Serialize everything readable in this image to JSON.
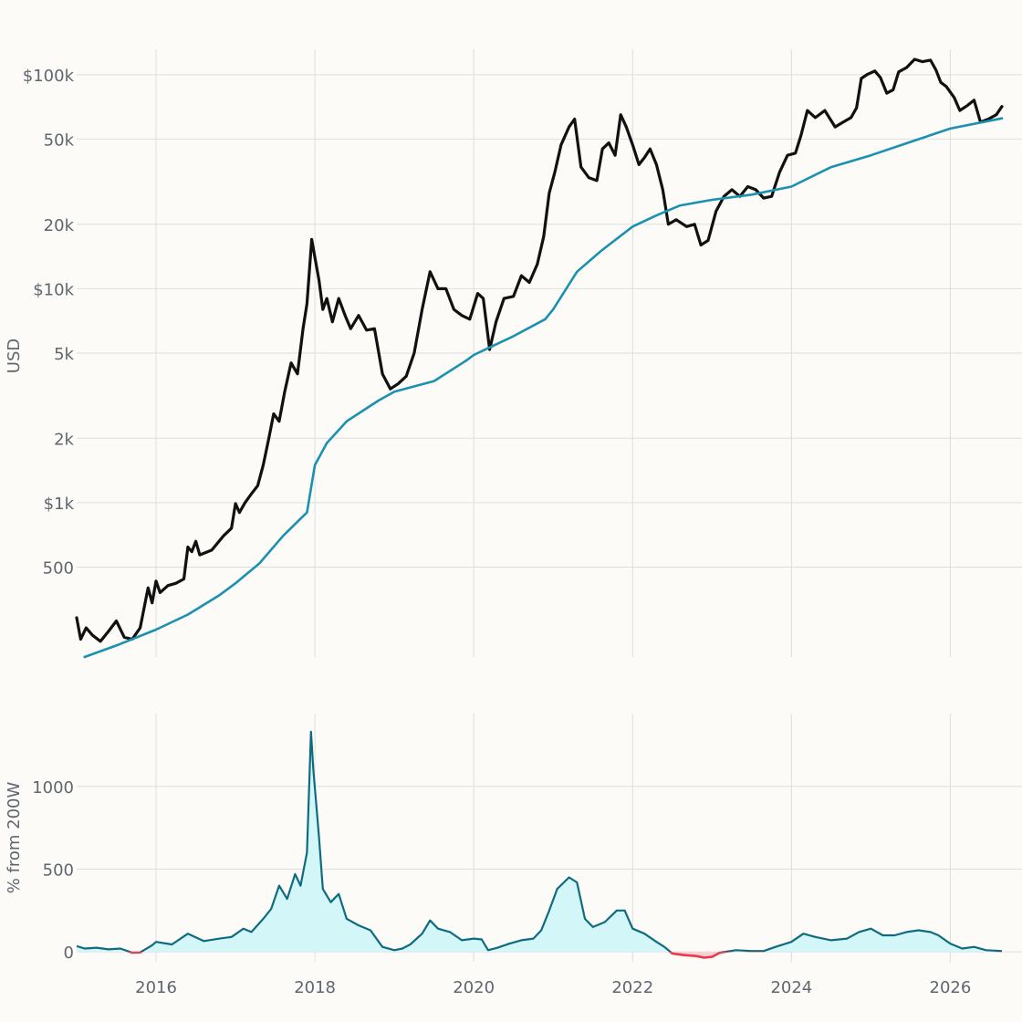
{
  "chart_data": [
    {
      "type": "line",
      "title": "",
      "xlabel": "",
      "ylabel": "USD",
      "yscale": "log",
      "xlim": [
        2015.0,
        2026.65
      ],
      "ylim": [
        190,
        145000
      ],
      "grid": true,
      "x_ticks": [
        {
          "value": 2016,
          "label": "2016"
        },
        {
          "value": 2018,
          "label": "2018"
        },
        {
          "value": 2020,
          "label": "2020"
        },
        {
          "value": 2022,
          "label": "2022"
        },
        {
          "value": 2024,
          "label": "2024"
        },
        {
          "value": 2026,
          "label": "2026"
        }
      ],
      "y_ticks": [
        {
          "value": 500,
          "label": "500"
        },
        {
          "value": 1000,
          "label": "$1k"
        },
        {
          "value": 2000,
          "label": "2k"
        },
        {
          "value": 5000,
          "label": "5k"
        },
        {
          "value": 10000,
          "label": "$10k"
        },
        {
          "value": 20000,
          "label": "20k"
        },
        {
          "value": 50000,
          "label": "50k"
        },
        {
          "value": 100000,
          "label": "$100k"
        }
      ],
      "series": [
        {
          "color": "#111111",
          "points": [
            [
              2015.0,
              290
            ],
            [
              2015.05,
              230
            ],
            [
              2015.12,
              260
            ],
            [
              2015.2,
              240
            ],
            [
              2015.3,
              225
            ],
            [
              2015.4,
              250
            ],
            [
              2015.5,
              280
            ],
            [
              2015.6,
              235
            ],
            [
              2015.7,
              230
            ],
            [
              2015.8,
              260
            ],
            [
              2015.9,
              400
            ],
            [
              2015.95,
              340
            ],
            [
              2016.0,
              430
            ],
            [
              2016.05,
              380
            ],
            [
              2016.15,
              410
            ],
            [
              2016.25,
              420
            ],
            [
              2016.35,
              440
            ],
            [
              2016.4,
              620
            ],
            [
              2016.45,
              590
            ],
            [
              2016.5,
              660
            ],
            [
              2016.55,
              570
            ],
            [
              2016.7,
              600
            ],
            [
              2016.85,
              700
            ],
            [
              2016.95,
              760
            ],
            [
              2017.0,
              990
            ],
            [
              2017.05,
              900
            ],
            [
              2017.12,
              1000
            ],
            [
              2017.2,
              1100
            ],
            [
              2017.28,
              1200
            ],
            [
              2017.35,
              1500
            ],
            [
              2017.42,
              2000
            ],
            [
              2017.48,
              2600
            ],
            [
              2017.55,
              2400
            ],
            [
              2017.62,
              3300
            ],
            [
              2017.7,
              4500
            ],
            [
              2017.78,
              4000
            ],
            [
              2017.85,
              6500
            ],
            [
              2017.9,
              8500
            ],
            [
              2017.96,
              17000
            ],
            [
              2018.0,
              14000
            ],
            [
              2018.05,
              11000
            ],
            [
              2018.1,
              8000
            ],
            [
              2018.15,
              9000
            ],
            [
              2018.22,
              7000
            ],
            [
              2018.3,
              9000
            ],
            [
              2018.38,
              7500
            ],
            [
              2018.45,
              6500
            ],
            [
              2018.55,
              7500
            ],
            [
              2018.65,
              6400
            ],
            [
              2018.75,
              6500
            ],
            [
              2018.85,
              4000
            ],
            [
              2018.95,
              3400
            ],
            [
              2019.05,
              3600
            ],
            [
              2019.15,
              3900
            ],
            [
              2019.25,
              5000
            ],
            [
              2019.35,
              8000
            ],
            [
              2019.45,
              12000
            ],
            [
              2019.55,
              10000
            ],
            [
              2019.65,
              10000
            ],
            [
              2019.75,
              8000
            ],
            [
              2019.85,
              7500
            ],
            [
              2019.95,
              7200
            ],
            [
              2020.05,
              9500
            ],
            [
              2020.12,
              9000
            ],
            [
              2020.2,
              5200
            ],
            [
              2020.28,
              7000
            ],
            [
              2020.38,
              9000
            ],
            [
              2020.5,
              9200
            ],
            [
              2020.6,
              11500
            ],
            [
              2020.7,
              10700
            ],
            [
              2020.8,
              13000
            ],
            [
              2020.88,
              17500
            ],
            [
              2020.95,
              28000
            ],
            [
              2021.02,
              35000
            ],
            [
              2021.1,
              47000
            ],
            [
              2021.2,
              57000
            ],
            [
              2021.27,
              62000
            ],
            [
              2021.35,
              37000
            ],
            [
              2021.45,
              33000
            ],
            [
              2021.55,
              32000
            ],
            [
              2021.62,
              45000
            ],
            [
              2021.7,
              48000
            ],
            [
              2021.78,
              42000
            ],
            [
              2021.85,
              65000
            ],
            [
              2021.92,
              57000
            ],
            [
              2022.0,
              47000
            ],
            [
              2022.08,
              38000
            ],
            [
              2022.15,
              41000
            ],
            [
              2022.22,
              45000
            ],
            [
              2022.3,
              38000
            ],
            [
              2022.38,
              29000
            ],
            [
              2022.45,
              20000
            ],
            [
              2022.55,
              21000
            ],
            [
              2022.68,
              19500
            ],
            [
              2022.78,
              20000
            ],
            [
              2022.86,
              16000
            ],
            [
              2022.95,
              16800
            ],
            [
              2023.05,
              23000
            ],
            [
              2023.15,
              27000
            ],
            [
              2023.25,
              29000
            ],
            [
              2023.35,
              27000
            ],
            [
              2023.45,
              30000
            ],
            [
              2023.55,
              29000
            ],
            [
              2023.65,
              26500
            ],
            [
              2023.75,
              27000
            ],
            [
              2023.85,
              35000
            ],
            [
              2023.95,
              42000
            ],
            [
              2024.05,
              43000
            ],
            [
              2024.12,
              52000
            ],
            [
              2024.2,
              68000
            ],
            [
              2024.3,
              63000
            ],
            [
              2024.42,
              68000
            ],
            [
              2024.55,
              57000
            ],
            [
              2024.65,
              60000
            ],
            [
              2024.75,
              63000
            ],
            [
              2024.82,
              70000
            ],
            [
              2024.88,
              96000
            ],
            [
              2024.95,
              100000
            ],
            [
              2025.05,
              104000
            ],
            [
              2025.12,
              97000
            ],
            [
              2025.2,
              82000
            ],
            [
              2025.28,
              85000
            ],
            [
              2025.35,
              103000
            ],
            [
              2025.45,
              108000
            ],
            [
              2025.55,
              118000
            ],
            [
              2025.65,
              115000
            ],
            [
              2025.75,
              117000
            ],
            [
              2025.82,
              105000
            ],
            [
              2025.88,
              92000
            ],
            [
              2025.95,
              88000
            ],
            [
              2026.05,
              78000
            ],
            [
              2026.12,
              68000
            ],
            [
              2026.22,
              72000
            ],
            [
              2026.3,
              76000
            ],
            [
              2026.38,
              60000
            ],
            [
              2026.48,
              62000
            ],
            [
              2026.58,
              65000
            ],
            [
              2026.65,
              71000
            ]
          ]
        },
        {
          "color": "#1b91b0",
          "points": [
            [
              2015.1,
              190
            ],
            [
              2015.5,
              215
            ],
            [
              2016.0,
              255
            ],
            [
              2016.4,
              300
            ],
            [
              2016.8,
              370
            ],
            [
              2017.0,
              420
            ],
            [
              2017.3,
              520
            ],
            [
              2017.6,
              700
            ],
            [
              2017.9,
              900
            ],
            [
              2018.0,
              1500
            ],
            [
              2018.15,
              1900
            ],
            [
              2018.4,
              2400
            ],
            [
              2018.8,
              3000
            ],
            [
              2019.0,
              3300
            ],
            [
              2019.5,
              3700
            ],
            [
              2019.9,
              4600
            ],
            [
              2020.0,
              4900
            ],
            [
              2020.5,
              6000
            ],
            [
              2020.9,
              7200
            ],
            [
              2021.0,
              8000
            ],
            [
              2021.3,
              12000
            ],
            [
              2021.6,
              15000
            ],
            [
              2022.0,
              19500
            ],
            [
              2022.3,
              22000
            ],
            [
              2022.6,
              24500
            ],
            [
              2023.0,
              26000
            ],
            [
              2023.5,
              27500
            ],
            [
              2024.0,
              30000
            ],
            [
              2024.5,
              37000
            ],
            [
              2025.0,
              42000
            ],
            [
              2025.5,
              48500
            ],
            [
              2026.0,
              56000
            ],
            [
              2026.65,
              62500
            ]
          ]
        }
      ]
    },
    {
      "type": "area",
      "title": "",
      "xlabel": "",
      "ylabel": "% from 200W",
      "xlim": [
        2015.0,
        2026.65
      ],
      "ylim": [
        -60,
        1440
      ],
      "grid": true,
      "x_ticks": [
        {
          "value": 2016,
          "label": "2016"
        },
        {
          "value": 2018,
          "label": "2018"
        },
        {
          "value": 2020,
          "label": "2020"
        },
        {
          "value": 2022,
          "label": "2022"
        },
        {
          "value": 2024,
          "label": "2024"
        },
        {
          "value": 2026,
          "label": "2026"
        }
      ],
      "y_ticks": [
        {
          "value": 0,
          "label": "0"
        },
        {
          "value": 500,
          "label": "500"
        },
        {
          "value": 1000,
          "label": "1000"
        }
      ],
      "positive_color": "#0f6b80",
      "positive_fill": "#d3f6f8",
      "negative_color": "#e8394f",
      "negative_fill": "#fad0d5",
      "points": [
        [
          2015.0,
          35
        ],
        [
          2015.1,
          20
        ],
        [
          2015.25,
          25
        ],
        [
          2015.4,
          15
        ],
        [
          2015.55,
          20
        ],
        [
          2015.7,
          -5
        ],
        [
          2015.8,
          -3
        ],
        [
          2015.95,
          40
        ],
        [
          2016.0,
          60
        ],
        [
          2016.2,
          45
        ],
        [
          2016.4,
          110
        ],
        [
          2016.6,
          65
        ],
        [
          2016.8,
          80
        ],
        [
          2016.95,
          90
        ],
        [
          2017.1,
          140
        ],
        [
          2017.2,
          120
        ],
        [
          2017.35,
          200
        ],
        [
          2017.45,
          260
        ],
        [
          2017.55,
          400
        ],
        [
          2017.65,
          320
        ],
        [
          2017.75,
          470
        ],
        [
          2017.82,
          400
        ],
        [
          2017.9,
          600
        ],
        [
          2017.95,
          1330
        ],
        [
          2017.98,
          1100
        ],
        [
          2018.05,
          700
        ],
        [
          2018.1,
          380
        ],
        [
          2018.2,
          300
        ],
        [
          2018.3,
          350
        ],
        [
          2018.4,
          200
        ],
        [
          2018.55,
          160
        ],
        [
          2018.7,
          130
        ],
        [
          2018.85,
          30
        ],
        [
          2019.0,
          10
        ],
        [
          2019.1,
          20
        ],
        [
          2019.2,
          45
        ],
        [
          2019.35,
          110
        ],
        [
          2019.45,
          190
        ],
        [
          2019.55,
          140
        ],
        [
          2019.7,
          120
        ],
        [
          2019.85,
          70
        ],
        [
          2020.0,
          80
        ],
        [
          2020.1,
          75
        ],
        [
          2020.18,
          10
        ],
        [
          2020.3,
          25
        ],
        [
          2020.45,
          50
        ],
        [
          2020.6,
          70
        ],
        [
          2020.75,
          80
        ],
        [
          2020.85,
          130
        ],
        [
          2020.95,
          250
        ],
        [
          2021.05,
          380
        ],
        [
          2021.2,
          450
        ],
        [
          2021.3,
          420
        ],
        [
          2021.4,
          200
        ],
        [
          2021.5,
          150
        ],
        [
          2021.65,
          180
        ],
        [
          2021.8,
          250
        ],
        [
          2021.9,
          250
        ],
        [
          2022.0,
          140
        ],
        [
          2022.15,
          110
        ],
        [
          2022.3,
          60
        ],
        [
          2022.4,
          30
        ],
        [
          2022.5,
          -10
        ],
        [
          2022.65,
          -20
        ],
        [
          2022.8,
          -25
        ],
        [
          2022.9,
          -35
        ],
        [
          2023.0,
          -30
        ],
        [
          2023.1,
          -5
        ],
        [
          2023.3,
          10
        ],
        [
          2023.5,
          5
        ],
        [
          2023.65,
          5
        ],
        [
          2023.8,
          30
        ],
        [
          2024.0,
          60
        ],
        [
          2024.15,
          110
        ],
        [
          2024.3,
          90
        ],
        [
          2024.5,
          70
        ],
        [
          2024.7,
          80
        ],
        [
          2024.85,
          120
        ],
        [
          2025.0,
          140
        ],
        [
          2025.15,
          100
        ],
        [
          2025.3,
          100
        ],
        [
          2025.45,
          120
        ],
        [
          2025.6,
          130
        ],
        [
          2025.75,
          120
        ],
        [
          2025.85,
          100
        ],
        [
          2026.0,
          50
        ],
        [
          2026.15,
          20
        ],
        [
          2026.3,
          30
        ],
        [
          2026.45,
          10
        ],
        [
          2026.65,
          5
        ]
      ]
    }
  ]
}
